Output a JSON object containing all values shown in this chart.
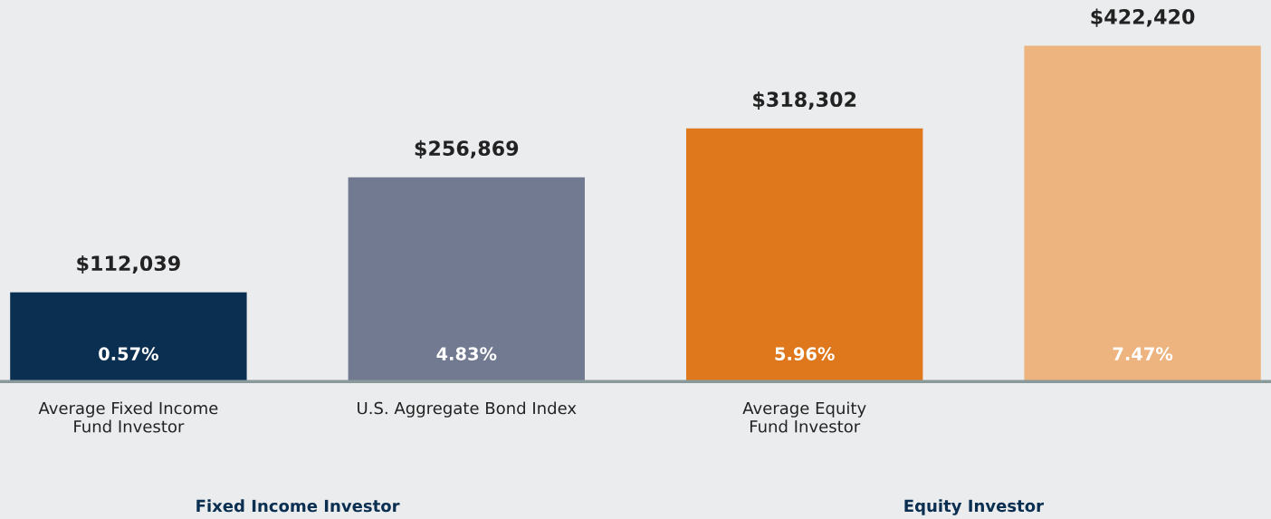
{
  "chart_data": {
    "type": "bar",
    "categories": [
      "Average Fixed Income\nFund Investor",
      "U.S. Aggregate Bond Index",
      "Average Equity\nFund Investor",
      null
    ],
    "values": [
      112039,
      256869,
      318302,
      422420
    ],
    "colors": [
      "#0b2f50",
      "#727a92",
      "#df781c",
      "#edb47f"
    ],
    "value_labels": [
      "$112,039",
      "$256,869",
      "$318,302",
      "$422,420"
    ],
    "ylim": [
      0,
      480000
    ],
    "tick_labels": "x",
    "grid": false,
    "annotations": [
      {
        "text": "0.57%",
        "y": 0
      },
      {
        "text": "4.83%",
        "y": 0
      },
      {
        "text": "5.96%",
        "y": 0
      },
      {
        "text": "7.47%",
        "y": 0
      },
      "Fixed Income Investor",
      "Equity Investor"
    ]
  }
}
